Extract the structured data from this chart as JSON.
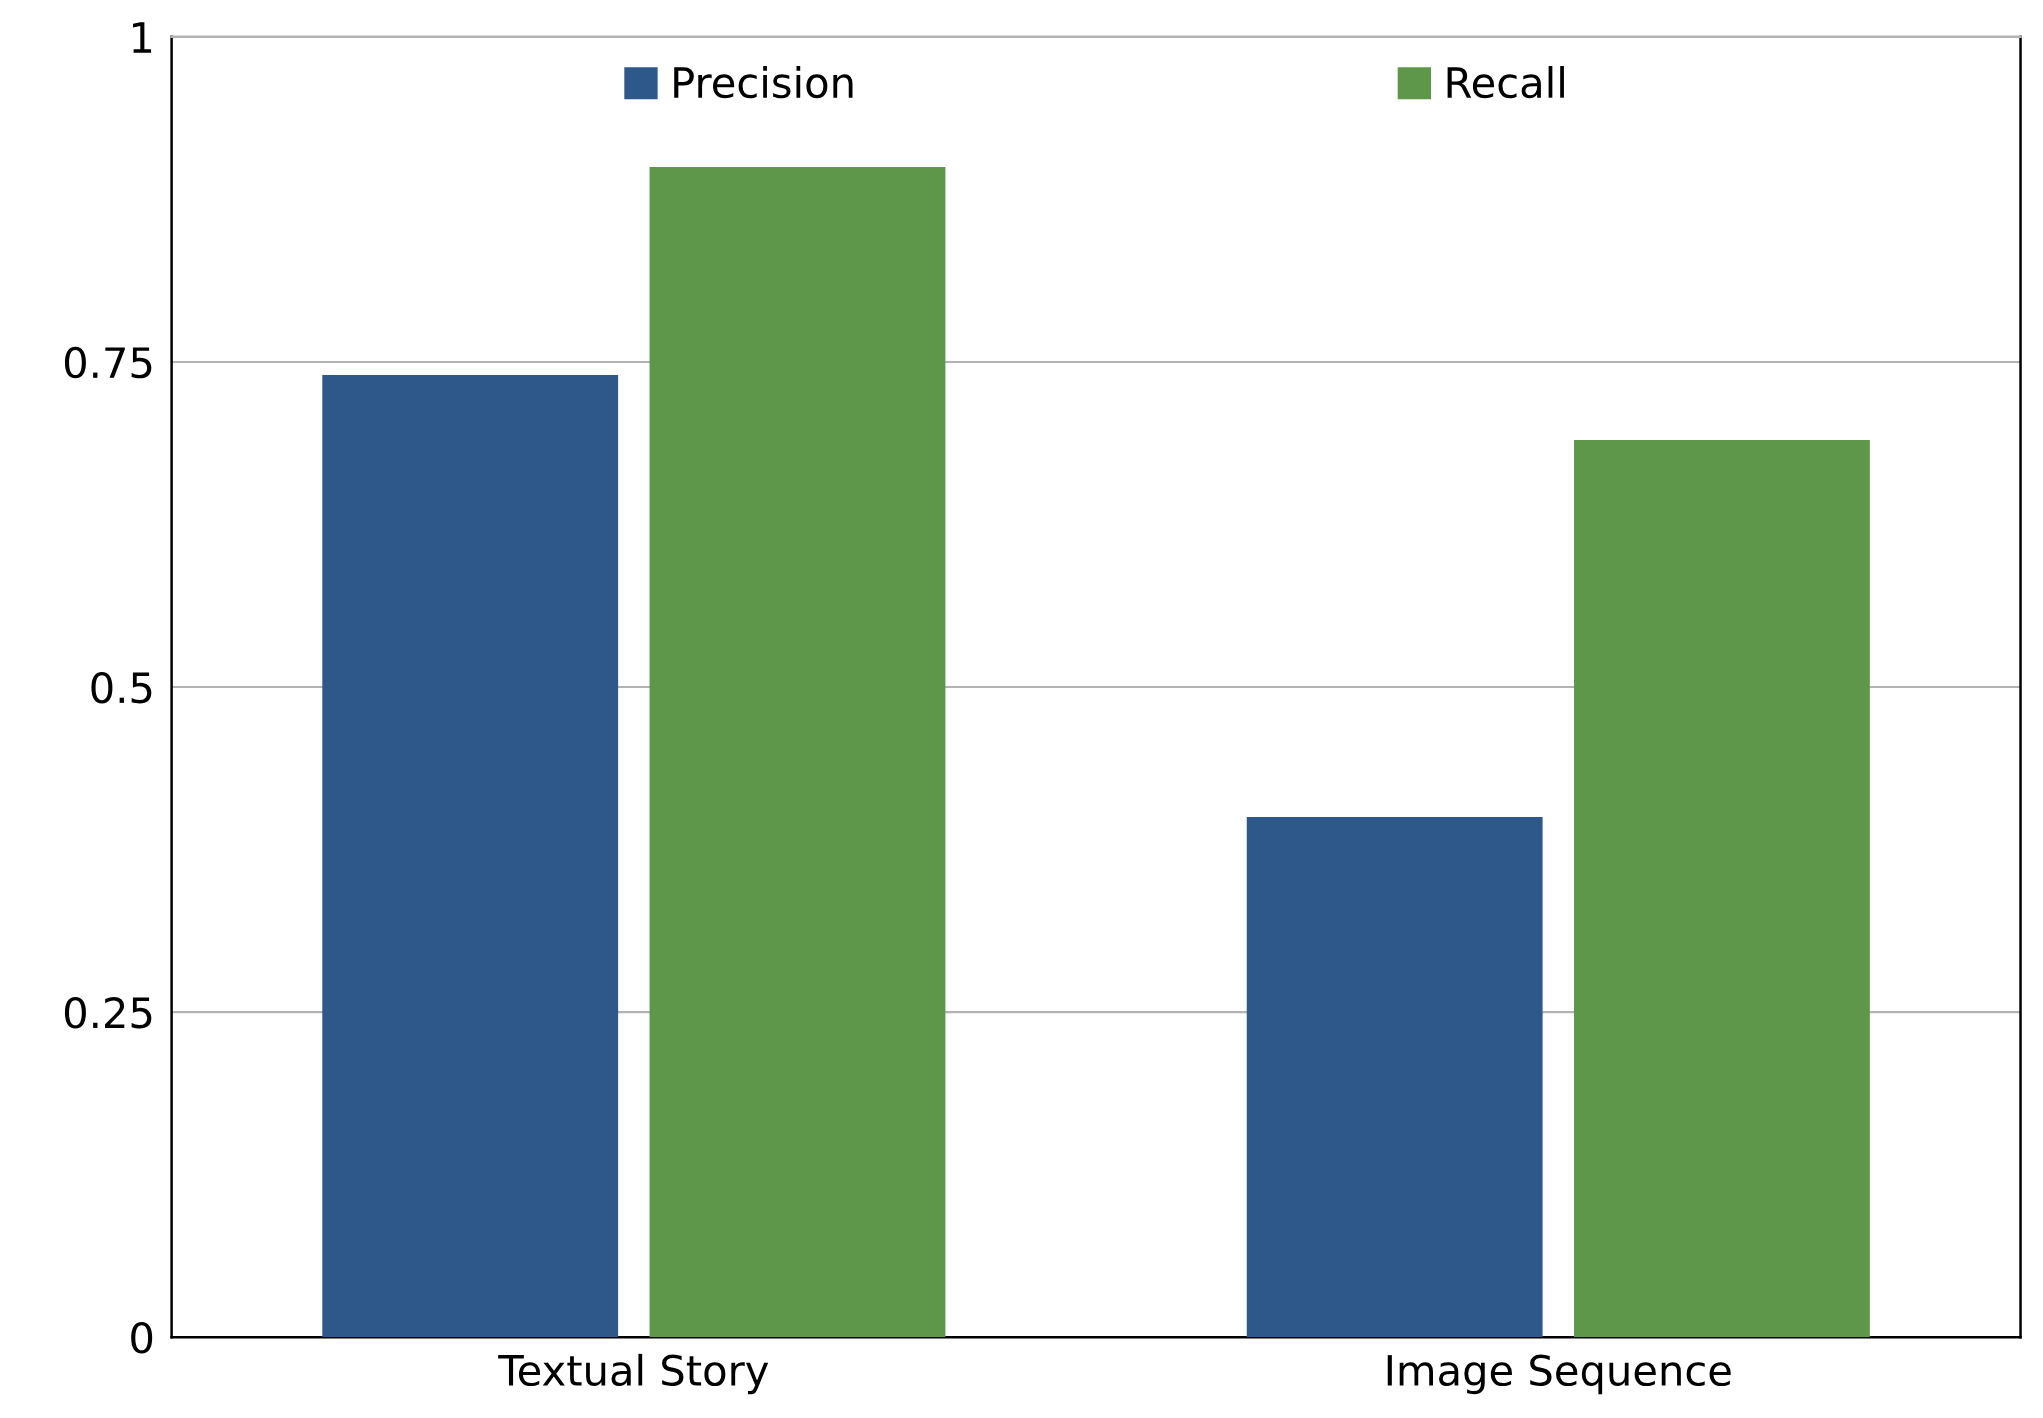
{
  "chart_data": {
    "type": "bar",
    "categories": [
      "Textual Story",
      "Image Sequence"
    ],
    "series": [
      {
        "name": "Precision",
        "color": "#2e5889",
        "values": [
          0.74,
          0.4
        ]
      },
      {
        "name": "Recall",
        "color": "#5e9749",
        "values": [
          0.9,
          0.69
        ]
      }
    ],
    "ylim": [
      0,
      1
    ],
    "yticks": [
      0,
      {
        "value": 0.25,
        "label": "0.25"
      },
      0.5,
      0.75,
      1
    ],
    "grid": "y",
    "legend": "top"
  }
}
